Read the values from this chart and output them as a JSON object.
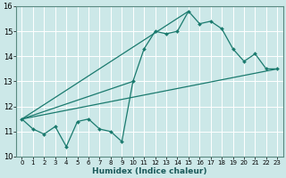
{
  "xlabel": "Humidex (Indice chaleur)",
  "xlim": [
    -0.5,
    23.5
  ],
  "ylim": [
    10,
    16
  ],
  "yticks": [
    10,
    11,
    12,
    13,
    14,
    15,
    16
  ],
  "xticks": [
    0,
    1,
    2,
    3,
    4,
    5,
    6,
    7,
    8,
    9,
    10,
    11,
    12,
    13,
    14,
    15,
    16,
    17,
    18,
    19,
    20,
    21,
    22,
    23
  ],
  "bg_color": "#cce8e8",
  "grid_color": "#b0d0d0",
  "line_color": "#1a7a6e",
  "line1_x": [
    0,
    1,
    2,
    3,
    4,
    5,
    6,
    7,
    8,
    9,
    10,
    11,
    12,
    13,
    14,
    15,
    16,
    17,
    18,
    19,
    20,
    21,
    22,
    23
  ],
  "line1_y": [
    11.5,
    11.1,
    10.9,
    11.2,
    10.4,
    11.4,
    11.5,
    11.1,
    11.0,
    10.6,
    13.0,
    14.3,
    15.0,
    14.9,
    15.0,
    15.8,
    15.3,
    15.4,
    15.1,
    14.3,
    13.8,
    14.1,
    13.5,
    13.5
  ],
  "line2_x": [
    0,
    10
  ],
  "line2_y": [
    11.5,
    13.0
  ],
  "line3_x": [
    0,
    15
  ],
  "line3_y": [
    11.5,
    15.8
  ],
  "line4_x": [
    0,
    23
  ],
  "line4_y": [
    11.5,
    13.5
  ]
}
